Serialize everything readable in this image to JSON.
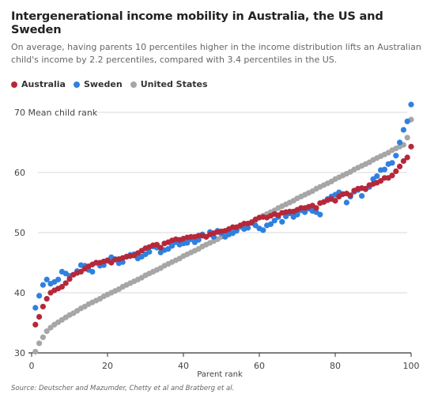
{
  "title": "Intergenerational income mobility in Australia, the US and Sweden",
  "subtitle": "On average, having parents 10 percentiles higher in the income distribution lifts an Australian child's income by 2.2 percentiles, compared with 3.4 percentiles in the US.",
  "source": "Source: Deutscher and Mazumder, Chetty et al and Bratberg et al.",
  "colors": {
    "Australia": "#b5283a",
    "Sweden": "#2f80e0",
    "United States": "#a6a6a6",
    "grid": "#d9d9d9",
    "axis": "#333333"
  },
  "chart_data": {
    "type": "scatter",
    "xlabel": "Parent rank",
    "ylabel": "Mean child rank",
    "xlim": [
      0,
      100
    ],
    "ylim": [
      30,
      72
    ],
    "xticks": [
      0,
      20,
      40,
      60,
      80,
      100
    ],
    "yticks": [
      30,
      40,
      50,
      60,
      70
    ],
    "ytick_labels": [
      "30",
      "40",
      "50",
      "60",
      "70 Mean child rank"
    ],
    "grid": "horizontal",
    "legend_position": "top-left",
    "x": [
      1,
      2,
      3,
      4,
      5,
      6,
      7,
      8,
      9,
      10,
      11,
      12,
      13,
      14,
      15,
      16,
      17,
      18,
      19,
      20,
      21,
      22,
      23,
      24,
      25,
      26,
      27,
      28,
      29,
      30,
      31,
      32,
      33,
      34,
      35,
      36,
      37,
      38,
      39,
      40,
      41,
      42,
      43,
      44,
      45,
      46,
      47,
      48,
      49,
      50,
      51,
      52,
      53,
      54,
      55,
      56,
      57,
      58,
      59,
      60,
      61,
      62,
      63,
      64,
      65,
      66,
      67,
      68,
      69,
      70,
      71,
      72,
      73,
      74,
      75,
      76,
      77,
      78,
      79,
      80,
      81,
      82,
      83,
      84,
      85,
      86,
      87,
      88,
      89,
      90,
      91,
      92,
      93,
      94,
      95,
      96,
      97,
      98,
      99,
      100
    ],
    "series": [
      {
        "name": "Australia",
        "values": [
          34.7,
          36.0,
          37.7,
          39.0,
          40.0,
          40.4,
          40.7,
          41.0,
          41.6,
          42.3,
          43.0,
          43.3,
          43.5,
          44.0,
          44.4,
          44.7,
          45.0,
          45.0,
          45.2,
          45.4,
          45.0,
          45.5,
          45.6,
          45.8,
          46.0,
          46.1,
          46.2,
          46.6,
          47.0,
          47.4,
          47.6,
          47.9,
          48.0,
          47.5,
          48.2,
          48.4,
          48.7,
          48.9,
          48.8,
          49.0,
          49.2,
          49.3,
          49.3,
          49.5,
          49.5,
          49.3,
          49.7,
          49.9,
          50.1,
          50.2,
          50.3,
          50.6,
          50.9,
          50.9,
          51.2,
          51.5,
          51.5,
          51.7,
          52.2,
          52.5,
          52.6,
          52.5,
          52.8,
          53.1,
          52.9,
          53.3,
          53.4,
          53.5,
          53.5,
          53.8,
          54.1,
          54.1,
          54.3,
          54.5,
          54.1,
          54.9,
          55.1,
          55.4,
          55.6,
          55.3,
          56.0,
          56.4,
          56.5,
          56.2,
          57.0,
          57.3,
          57.4,
          57.3,
          57.9,
          58.1,
          58.3,
          58.6,
          59.1,
          59.1,
          59.5,
          60.2,
          61.0,
          61.9,
          62.5,
          64.3
        ]
      },
      {
        "name": "Sweden",
        "values": [
          37.5,
          39.5,
          41.3,
          42.2,
          41.5,
          41.8,
          42.2,
          43.5,
          43.2,
          42.8,
          43.0,
          43.6,
          44.6,
          44.5,
          43.8,
          43.5,
          45.0,
          44.5,
          44.6,
          45.3,
          45.9,
          45.6,
          44.9,
          45.1,
          46.0,
          46.3,
          46.4,
          45.7,
          46.0,
          46.4,
          46.8,
          47.7,
          47.5,
          46.7,
          47.1,
          47.3,
          47.8,
          48.4,
          48.0,
          48.2,
          48.3,
          48.9,
          48.4,
          48.8,
          49.7,
          49.3,
          50.1,
          49.3,
          50.3,
          49.9,
          49.3,
          49.7,
          49.9,
          50.3,
          51.1,
          50.6,
          50.8,
          51.6,
          51.2,
          50.7,
          50.4,
          51.2,
          51.4,
          52.0,
          52.6,
          51.8,
          52.7,
          53.2,
          52.6,
          53.0,
          53.7,
          53.4,
          54.0,
          53.6,
          53.4,
          53.0,
          55.1,
          55.6,
          56.0,
          56.3,
          56.7,
          56.4,
          55.0,
          56.0,
          56.8,
          57.1,
          56.1,
          57.2,
          57.6,
          58.9,
          59.4,
          60.4,
          60.5,
          61.4,
          61.6,
          62.8,
          65.0,
          67.1,
          68.5,
          71.3
        ]
      },
      {
        "name": "United States",
        "values": [
          30.2,
          31.6,
          32.6,
          33.6,
          34.2,
          34.7,
          35.1,
          35.5,
          35.9,
          36.3,
          36.6,
          37.0,
          37.4,
          37.7,
          38.1,
          38.4,
          38.7,
          39.0,
          39.4,
          39.7,
          40.0,
          40.3,
          40.6,
          41.0,
          41.3,
          41.6,
          41.9,
          42.2,
          42.5,
          42.9,
          43.2,
          43.5,
          43.8,
          44.1,
          44.5,
          44.8,
          45.1,
          45.4,
          45.7,
          46.1,
          46.4,
          46.7,
          47.0,
          47.3,
          47.7,
          48.0,
          48.3,
          48.6,
          48.9,
          49.3,
          49.6,
          49.9,
          50.2,
          50.5,
          50.9,
          51.2,
          51.5,
          51.8,
          52.1,
          52.5,
          52.8,
          53.1,
          53.4,
          53.7,
          54.1,
          54.4,
          54.7,
          55.0,
          55.3,
          55.7,
          56.0,
          56.3,
          56.6,
          56.9,
          57.3,
          57.6,
          57.9,
          58.2,
          58.5,
          58.9,
          59.2,
          59.5,
          59.8,
          60.1,
          60.5,
          60.8,
          61.1,
          61.4,
          61.7,
          62.1,
          62.4,
          62.7,
          63.0,
          63.3,
          63.7,
          64.0,
          64.3,
          64.6,
          65.8,
          68.8
        ]
      }
    ]
  }
}
